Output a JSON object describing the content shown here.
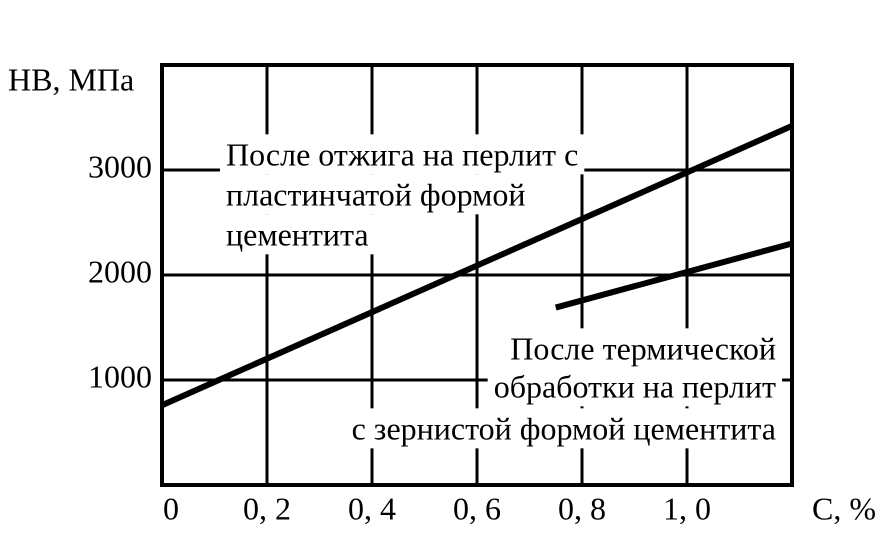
{
  "chart_data": {
    "type": "line",
    "y_axis_label": "НВ, МПа",
    "x_axis_label": "С, %",
    "xlim": [
      0,
      1.2
    ],
    "ylim": [
      0,
      4000
    ],
    "xticks": [
      {
        "value": 0,
        "label": "0"
      },
      {
        "value": 0.2,
        "label": "0, 2"
      },
      {
        "value": 0.4,
        "label": "0, 4"
      },
      {
        "value": 0.6,
        "label": "0, 6"
      },
      {
        "value": 0.8,
        "label": "0, 8"
      },
      {
        "value": 1.0,
        "label": "1, 0"
      }
    ],
    "yticks": [
      1000,
      2000,
      3000
    ],
    "grid": true,
    "series": [
      {
        "color": "#000000",
        "x": [
          0,
          1.2
        ],
        "values": [
          760,
          3420
        ]
      },
      {
        "color": "#000000",
        "x": [
          0.75,
          1.2
        ],
        "values": [
          1690,
          2300
        ]
      }
    ],
    "annotations": [
      {
        "lines": [
          "После отжига на перлит с",
          "пластинчатой формой",
          "цементита"
        ]
      },
      {
        "lines": [
          "После термической",
          "обработки на перлит",
          "с зернистой формой цементита"
        ]
      }
    ]
  }
}
